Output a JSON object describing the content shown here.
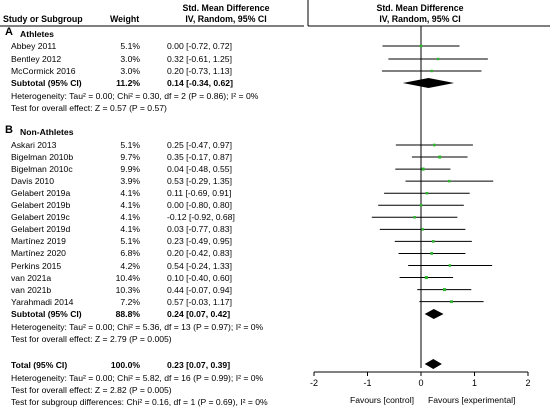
{
  "header": {
    "col_study": "Study or Subgroup",
    "col_weight": "Weight",
    "col_smd_title": "Std. Mean Difference",
    "col_smd_sub": "IV, Random, 95% CI",
    "plot_title": "Std. Mean Difference",
    "plot_sub": "IV, Random, 95% CI"
  },
  "groups": [
    {
      "letter": "A",
      "name": "Athletes",
      "studies": [
        {
          "study": "Abbey 2011",
          "weight": "5.1%",
          "ci_text": "0.00 [-0.72, 0.72]"
        },
        {
          "study": "Bentley 2012",
          "weight": "3.0%",
          "ci_text": "0.32 [-0.61, 1.25]"
        },
        {
          "study": "McCormick 2016",
          "weight": "3.0%",
          "ci_text": "0.20 [-0.73, 1.13]"
        }
      ],
      "subtotal": {
        "label": "Subtotal (95% CI)",
        "weight": "11.2%",
        "ci_text": "0.14 [-0.34, 0.62]"
      },
      "heterogeneity": "Heterogeneity: Tau² = 0.00; Chi² = 0.30, df = 2 (P = 0.86); I² = 0%",
      "overall": "Test for overall effect: Z = 0.57 (P = 0.57)"
    },
    {
      "letter": "B",
      "name": "Non-Athletes",
      "studies": [
        {
          "study": "Askari 2013",
          "weight": "5.1%",
          "ci_text": "0.25 [-0.47, 0.97]"
        },
        {
          "study": "Bigelman 2010b",
          "weight": "9.7%",
          "ci_text": "0.35 [-0.17, 0.87]"
        },
        {
          "study": "Bigelman 2010c",
          "weight": "9.9%",
          "ci_text": "0.04 [-0.48, 0.55]"
        },
        {
          "study": "Davis 2010",
          "weight": "3.9%",
          "ci_text": "0.53 [-0.29, 1.35]"
        },
        {
          "study": "Gelabert 2019a",
          "weight": "4.1%",
          "ci_text": "0.11 [-0.69, 0.91]"
        },
        {
          "study": "Gelabert 2019b",
          "weight": "4.1%",
          "ci_text": "0.00 [-0.80, 0.80]"
        },
        {
          "study": "Gelabert 2019c",
          "weight": "4.1%",
          "ci_text": "-0.12 [-0.92, 0.68]"
        },
        {
          "study": "Gelabert 2019d",
          "weight": "4.1%",
          "ci_text": "0.03 [-0.77, 0.83]"
        },
        {
          "study": "Martínez 2019",
          "weight": "5.1%",
          "ci_text": "0.23 [-0.49, 0.95]"
        },
        {
          "study": "Martínez 2020",
          "weight": "6.8%",
          "ci_text": "0.20 [-0.42, 0.83]"
        },
        {
          "study": "Perkins 2015",
          "weight": "4.2%",
          "ci_text": "0.54 [-0.24, 1.33]"
        },
        {
          "study": "van 2021a",
          "weight": "10.4%",
          "ci_text": "0.10 [-0.40, 0.60]"
        },
        {
          "study": "van 2021b",
          "weight": "10.3%",
          "ci_text": "0.44 [-0.07, 0.94]"
        },
        {
          "study": "Yarahmadi 2014",
          "weight": "7.2%",
          "ci_text": "0.57 [-0.03, 1.17]"
        }
      ],
      "subtotal": {
        "label": "Subtotal (95% CI)",
        "weight": "88.8%",
        "ci_text": "0.24 [0.07, 0.42]"
      },
      "heterogeneity": "Heterogeneity: Tau² = 0.00; Chi² = 5.36, df = 13 (P = 0.97); I² = 0%",
      "overall": "Test for overall effect: Z = 2.79 (P = 0.005)"
    }
  ],
  "total": {
    "label": "Total (95% CI)",
    "weight": "100.0%",
    "ci_text": "0.23 [0.07, 0.39]",
    "heterogeneity": "Heterogeneity: Tau² = 0.00; Chi² = 5.82, df = 16 (P = 0.99); I² = 0%",
    "overall": "Test for overall effect: Z = 2.82 (P = 0.005)",
    "subgroup": "Test for subgroup differences: Chi² = 0.16, df = 1 (P = 0.69), I² = 0%"
  },
  "axis_labels": {
    "left": "Favours [control]",
    "right": "Favours [experimental]"
  },
  "colors": {
    "marker": "#2db52d",
    "line": "#000000",
    "diamond": "#000000"
  },
  "chart_data": {
    "type": "forest",
    "xlim": [
      -2,
      2
    ],
    "xticks": [
      -2,
      -1,
      0,
      1,
      2
    ],
    "xlabel_left": "Favours [control]",
    "xlabel_right": "Favours [experimental]",
    "groups": [
      {
        "rows": [
          {
            "est": 0.0,
            "lo": -0.72,
            "hi": 0.72,
            "weight": 5.1
          },
          {
            "est": 0.32,
            "lo": -0.61,
            "hi": 1.25,
            "weight": 3.0
          },
          {
            "est": 0.2,
            "lo": -0.73,
            "hi": 1.13,
            "weight": 3.0
          }
        ],
        "subtotal": {
          "est": 0.14,
          "lo": -0.34,
          "hi": 0.62
        }
      },
      {
        "rows": [
          {
            "est": 0.25,
            "lo": -0.47,
            "hi": 0.97,
            "weight": 5.1
          },
          {
            "est": 0.35,
            "lo": -0.17,
            "hi": 0.87,
            "weight": 9.7
          },
          {
            "est": 0.04,
            "lo": -0.48,
            "hi": 0.55,
            "weight": 9.9
          },
          {
            "est": 0.53,
            "lo": -0.29,
            "hi": 1.35,
            "weight": 3.9
          },
          {
            "est": 0.11,
            "lo": -0.69,
            "hi": 0.91,
            "weight": 4.1
          },
          {
            "est": 0.0,
            "lo": -0.8,
            "hi": 0.8,
            "weight": 4.1
          },
          {
            "est": -0.12,
            "lo": -0.92,
            "hi": 0.68,
            "weight": 4.1
          },
          {
            "est": 0.03,
            "lo": -0.77,
            "hi": 0.83,
            "weight": 4.1
          },
          {
            "est": 0.23,
            "lo": -0.49,
            "hi": 0.95,
            "weight": 5.1
          },
          {
            "est": 0.2,
            "lo": -0.42,
            "hi": 0.83,
            "weight": 6.8
          },
          {
            "est": 0.54,
            "lo": -0.24,
            "hi": 1.33,
            "weight": 4.2
          },
          {
            "est": 0.1,
            "lo": -0.4,
            "hi": 0.6,
            "weight": 10.4
          },
          {
            "est": 0.44,
            "lo": -0.07,
            "hi": 0.94,
            "weight": 10.3
          },
          {
            "est": 0.57,
            "lo": -0.03,
            "hi": 1.17,
            "weight": 7.2
          }
        ],
        "subtotal": {
          "est": 0.24,
          "lo": 0.07,
          "hi": 0.42
        }
      }
    ],
    "total": {
      "est": 0.23,
      "lo": 0.07,
      "hi": 0.39
    }
  }
}
